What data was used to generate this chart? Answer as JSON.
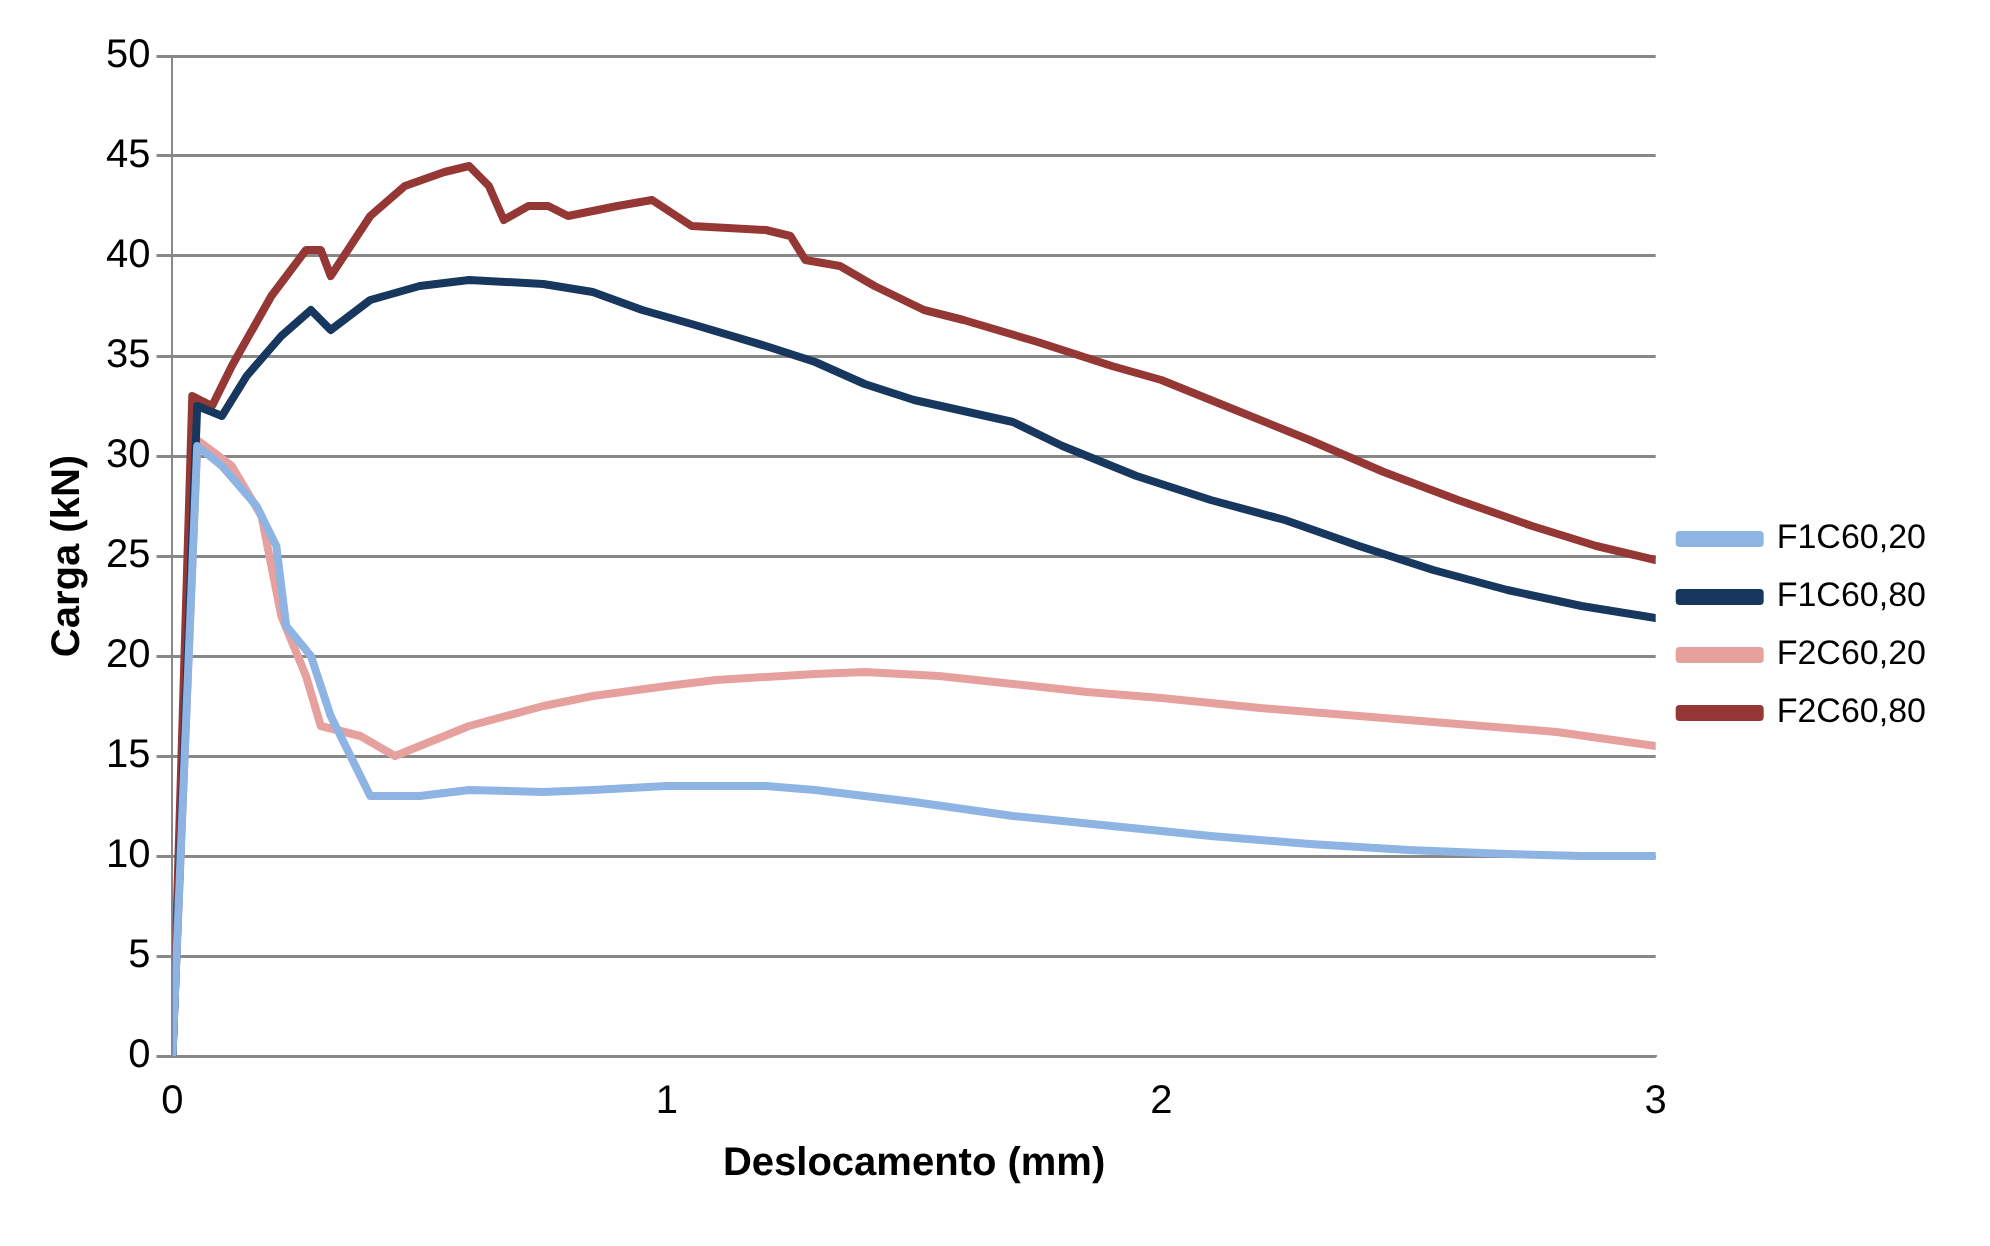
{
  "chart_data": {
    "type": "line",
    "xlabel": "Deslocamento (mm)",
    "ylabel": "Carga (kN)",
    "xlim": [
      0,
      3
    ],
    "xticks": [
      0,
      1,
      2,
      3
    ],
    "ylim": [
      0,
      50
    ],
    "yticks": [
      0,
      5,
      10,
      15,
      20,
      25,
      30,
      35,
      40,
      45,
      50
    ],
    "grid": "y",
    "legend": "right",
    "marker": "none",
    "line_style": "solid",
    "series": [
      {
        "name": "F1C60,20",
        "color": "#8db4e2",
        "x": [
          0,
          0.05,
          0.1,
          0.17,
          0.21,
          0.23,
          0.28,
          0.32,
          0.37,
          0.4,
          0.5,
          0.6,
          0.75,
          0.85,
          1.0,
          1.2,
          1.3,
          1.5,
          1.7,
          1.9,
          2.1,
          2.3,
          2.5,
          2.7,
          2.85,
          3.0
        ],
        "values": [
          0,
          30.5,
          29.5,
          27.5,
          25.5,
          21.5,
          20,
          17,
          14.5,
          13,
          13,
          13.3,
          13.2,
          13.3,
          13.5,
          13.5,
          13.3,
          12.7,
          12,
          11.5,
          11,
          10.6,
          10.3,
          10.1,
          10,
          10
        ]
      },
      {
        "name": "F1C60,80",
        "color": "#17375e",
        "x": [
          0,
          0.05,
          0.1,
          0.15,
          0.22,
          0.28,
          0.32,
          0.4,
          0.5,
          0.6,
          0.75,
          0.85,
          0.95,
          1.05,
          1.2,
          1.3,
          1.4,
          1.5,
          1.7,
          1.8,
          1.95,
          2.1,
          2.25,
          2.4,
          2.55,
          2.7,
          2.85,
          3.0
        ],
        "values": [
          0,
          32.5,
          32,
          34,
          36,
          37.3,
          36.3,
          37.8,
          38.5,
          38.8,
          38.6,
          38.2,
          37.3,
          36.6,
          35.5,
          34.7,
          33.6,
          32.8,
          31.7,
          30.5,
          29,
          27.8,
          26.8,
          25.5,
          24.3,
          23.3,
          22.5,
          21.9
        ]
      },
      {
        "name": "F2C60,20",
        "color": "#e6a09e",
        "x": [
          0,
          0.05,
          0.12,
          0.18,
          0.22,
          0.27,
          0.3,
          0.38,
          0.45,
          0.5,
          0.6,
          0.75,
          0.85,
          1.0,
          1.1,
          1.3,
          1.4,
          1.55,
          1.7,
          1.85,
          2.0,
          2.2,
          2.4,
          2.6,
          2.8,
          3.0
        ],
        "values": [
          0,
          30.8,
          29.5,
          27,
          22,
          19,
          16.5,
          16,
          15,
          15.5,
          16.5,
          17.5,
          18,
          18.5,
          18.8,
          19.1,
          19.2,
          19,
          18.6,
          18.2,
          17.9,
          17.4,
          17,
          16.6,
          16.2,
          15.5
        ]
      },
      {
        "name": "F2C60,80",
        "color": "#953735",
        "x": [
          0,
          0.04,
          0.08,
          0.12,
          0.2,
          0.27,
          0.3,
          0.32,
          0.4,
          0.47,
          0.55,
          0.6,
          0.64,
          0.67,
          0.72,
          0.76,
          0.8,
          0.9,
          0.97,
          1.05,
          1.2,
          1.25,
          1.28,
          1.35,
          1.42,
          1.52,
          1.6,
          1.75,
          1.9,
          2.0,
          2.15,
          2.3,
          2.45,
          2.6,
          2.75,
          2.88,
          3.0
        ],
        "values": [
          0,
          33,
          32.5,
          34.5,
          38,
          40.3,
          40.3,
          39,
          42,
          43.5,
          44.2,
          44.5,
          43.5,
          41.8,
          42.5,
          42.5,
          42,
          42.5,
          42.8,
          41.5,
          41.3,
          41,
          39.8,
          39.5,
          38.5,
          37.3,
          36.8,
          35.7,
          34.5,
          33.8,
          32.3,
          30.8,
          29.2,
          27.8,
          26.5,
          25.5,
          24.8
        ]
      }
    ]
  }
}
